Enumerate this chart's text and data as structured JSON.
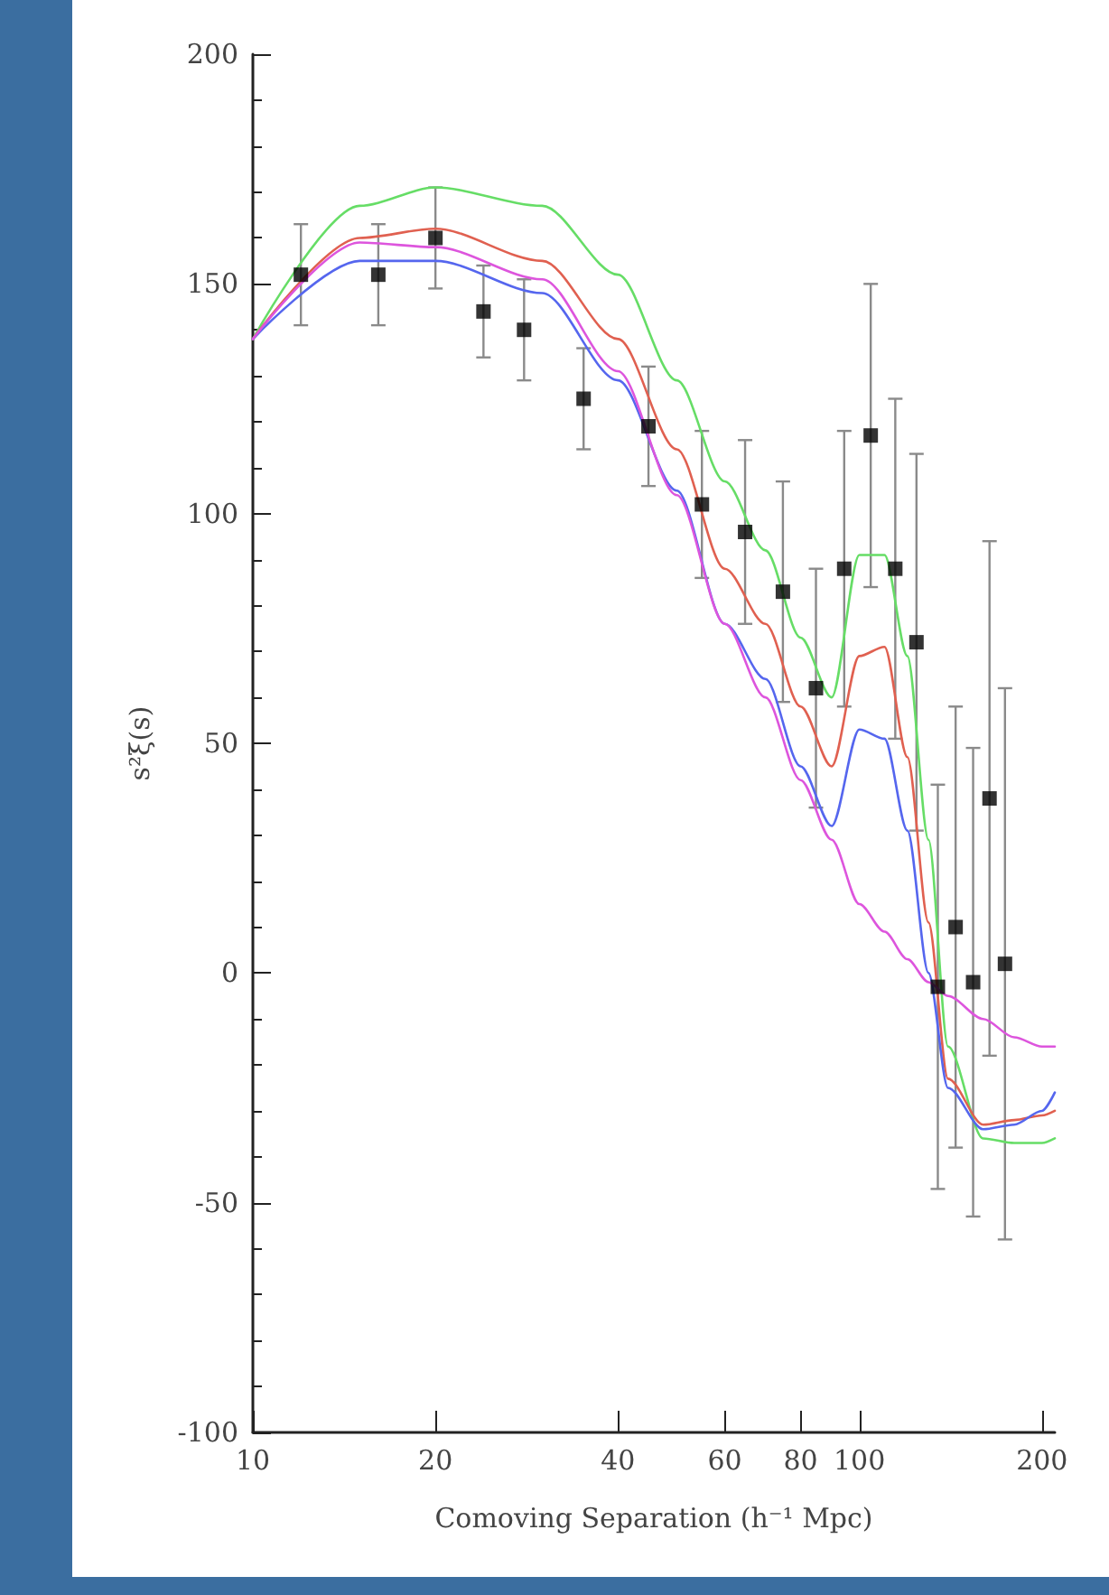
{
  "chart_data": {
    "type": "line",
    "xlabel": "Comoving Separation (h⁻¹ Mpc)",
    "ylabel": "s²ξ(s)",
    "log": "x",
    "grid": false,
    "xlim": [
      10,
      210
    ],
    "xticks": [
      10,
      20,
      40,
      60,
      80,
      100,
      200
    ],
    "ylim": [
      -100,
      200
    ],
    "yticks": [
      -100,
      -50,
      0,
      50,
      100,
      150,
      200
    ],
    "series": [
      {
        "color": "#66dd66",
        "x": [
          10,
          15,
          20,
          30,
          40,
          50,
          60,
          70,
          80,
          90,
          100,
          110,
          120,
          130,
          140,
          160,
          180,
          200,
          210
        ],
        "values": [
          138,
          167,
          171,
          167,
          152,
          129,
          107,
          92,
          73,
          60,
          91,
          91,
          69,
          29,
          -16,
          -36,
          -37,
          -37,
          -36
        ]
      },
      {
        "color": "#e06050",
        "x": [
          10,
          15,
          20,
          30,
          40,
          50,
          60,
          70,
          80,
          90,
          100,
          110,
          120,
          130,
          140,
          160,
          180,
          200,
          210
        ],
        "values": [
          138,
          160,
          162,
          155,
          138,
          114,
          88,
          76,
          58,
          45,
          69,
          71,
          47,
          11,
          -23,
          -33,
          -32,
          -31,
          -30
        ]
      },
      {
        "color": "#5566ee",
        "x": [
          10,
          15,
          20,
          30,
          40,
          50,
          60,
          70,
          80,
          90,
          100,
          110,
          120,
          130,
          140,
          160,
          180,
          200,
          210
        ],
        "values": [
          138,
          155,
          155,
          148,
          129,
          105,
          76,
          64,
          45,
          32,
          53,
          51,
          31,
          0,
          -25,
          -34,
          -33,
          -30,
          -26
        ]
      },
      {
        "color": "#dd55dd",
        "x": [
          10,
          15,
          20,
          30,
          40,
          50,
          60,
          70,
          80,
          90,
          100,
          110,
          120,
          130,
          140,
          160,
          180,
          200,
          210
        ],
        "values": [
          138,
          159,
          158,
          151,
          131,
          104,
          76,
          60,
          42,
          29,
          15,
          9,
          3,
          -2,
          -5,
          -10,
          -14,
          -16,
          -16
        ]
      },
      {
        "type": "scatter",
        "marker": "square",
        "color": "#000000",
        "x": [
          12,
          16.1,
          20,
          24,
          28,
          35.1,
          44.9,
          55,
          64.8,
          74.8,
          84.8,
          94.4,
          104.4,
          114.6,
          124.2,
          134.7,
          144.1,
          154,
          163.9,
          173.8
        ],
        "values": [
          152,
          152,
          160,
          144,
          140,
          125,
          119,
          102,
          96,
          83,
          62,
          88,
          117,
          88,
          72,
          -3,
          10,
          -2,
          38,
          2
        ],
        "errors": [
          11,
          11,
          11,
          10,
          11,
          11,
          13,
          16,
          20,
          24,
          26,
          30,
          33,
          37,
          41,
          44,
          48,
          51,
          56,
          60
        ]
      }
    ]
  }
}
